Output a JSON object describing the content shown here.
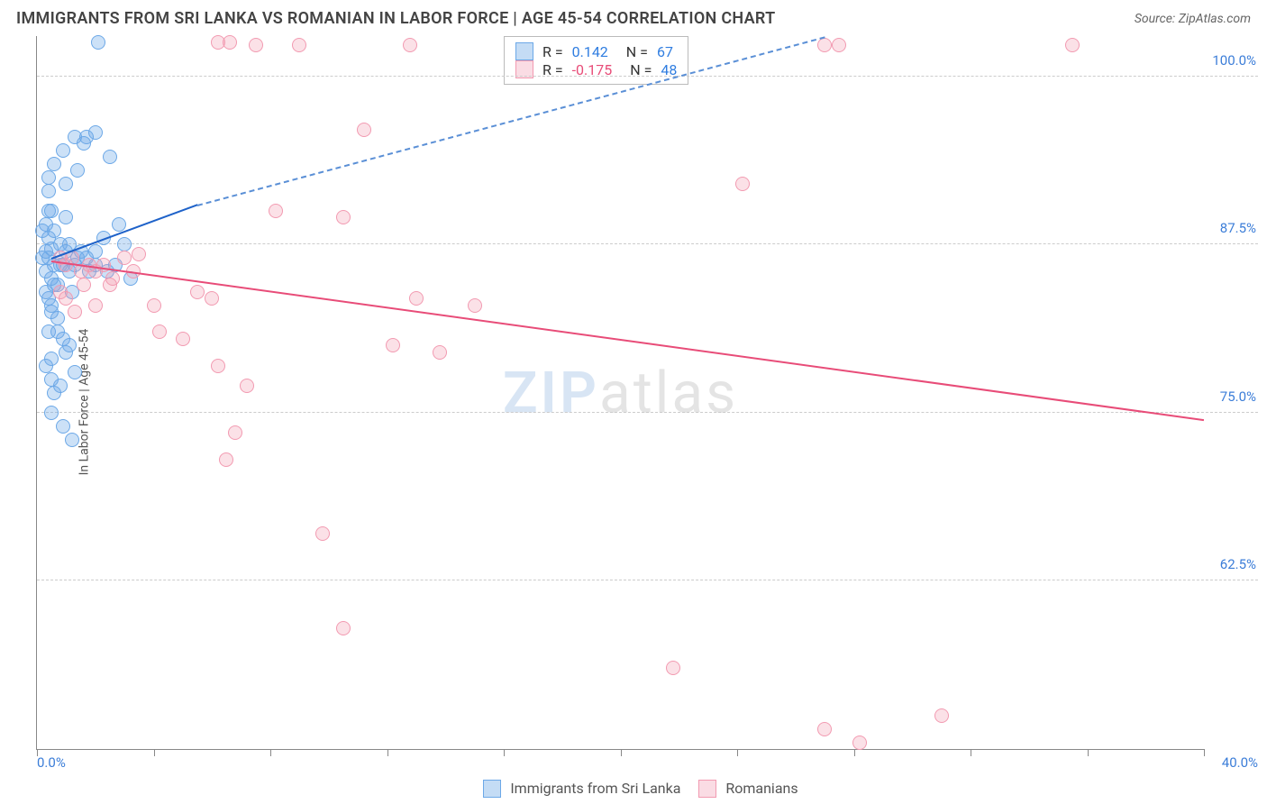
{
  "header": {
    "title": "IMMIGRANTS FROM SRI LANKA VS ROMANIAN IN LABOR FORCE | AGE 45-54 CORRELATION CHART",
    "source_prefix": "Source: ",
    "source_name": "ZipAtlas.com"
  },
  "chart": {
    "type": "scatter",
    "yaxis_title": "In Labor Force | Age 45-54",
    "xlim": [
      0,
      40
    ],
    "ylim": [
      50,
      103
    ],
    "xlabel_min": "0.0%",
    "xlabel_max": "40.0%",
    "yticks": [
      {
        "v": 62.5,
        "label": "62.5%"
      },
      {
        "v": 75.0,
        "label": "75.0%"
      },
      {
        "v": 87.5,
        "label": "87.5%"
      },
      {
        "v": 100.0,
        "label": "100.0%"
      }
    ],
    "xtick_positions": [
      0,
      4,
      8,
      12,
      16,
      20,
      24,
      28,
      32,
      36,
      40
    ],
    "background_color": "#ffffff",
    "grid_color": "#cccccc",
    "series": {
      "a": {
        "label": "Immigrants from Sri Lanka",
        "marker_fill": "rgba(108,168,231,0.35)",
        "marker_stroke": "#6ca8e7",
        "line_color": "#1e62c9",
        "R": "0.142",
        "N": "67",
        "trend": {
          "x1": 0.5,
          "y1": 86.5,
          "x2": 5.5,
          "y2": 90.5,
          "dash_to_x": 27,
          "dash_to_y": 103
        },
        "points": [
          [
            0.3,
            87
          ],
          [
            0.4,
            86.5
          ],
          [
            0.5,
            87.2
          ],
          [
            0.6,
            86
          ],
          [
            0.8,
            87.5
          ],
          [
            0.3,
            85.5
          ],
          [
            0.5,
            85
          ],
          [
            0.7,
            84.5
          ],
          [
            0.4,
            88
          ],
          [
            0.6,
            88.5
          ],
          [
            0.8,
            86
          ],
          [
            1.0,
            87
          ],
          [
            0.5,
            83
          ],
          [
            0.7,
            82
          ],
          [
            0.4,
            81
          ],
          [
            0.9,
            80.5
          ],
          [
            0.5,
            79
          ],
          [
            0.3,
            78.5
          ],
          [
            1.1,
            87.5
          ],
          [
            1.3,
            86
          ],
          [
            1.5,
            87
          ],
          [
            1.2,
            84
          ],
          [
            1.8,
            85.5
          ],
          [
            2.0,
            87
          ],
          [
            2.1,
            102.5
          ],
          [
            1.6,
            95
          ],
          [
            1.7,
            95.5
          ],
          [
            2.5,
            94
          ],
          [
            1.4,
            93
          ],
          [
            0.6,
            93.5
          ],
          [
            1.0,
            92
          ],
          [
            0.4,
            91.5
          ],
          [
            0.5,
            90
          ],
          [
            1.0,
            89.5
          ],
          [
            2.3,
            88
          ],
          [
            3.0,
            87.5
          ],
          [
            3.2,
            85
          ],
          [
            2.8,
            89
          ],
          [
            0.6,
            76.5
          ],
          [
            0.9,
            74
          ],
          [
            1.2,
            73
          ],
          [
            0.5,
            77.5
          ],
          [
            0.3,
            84
          ],
          [
            0.4,
            83.5
          ],
          [
            0.2,
            88.5
          ],
          [
            0.2,
            86.5
          ],
          [
            0.3,
            89
          ],
          [
            0.4,
            90
          ],
          [
            0.9,
            86
          ],
          [
            1.1,
            85.5
          ],
          [
            1.4,
            86.5
          ],
          [
            1.7,
            86.5
          ],
          [
            2.0,
            86
          ],
          [
            2.4,
            85.5
          ],
          [
            2.7,
            86
          ],
          [
            0.5,
            82.5
          ],
          [
            0.7,
            81
          ],
          [
            1.0,
            79.5
          ],
          [
            1.3,
            78
          ],
          [
            0.5,
            75
          ],
          [
            0.8,
            77
          ],
          [
            1.1,
            80
          ],
          [
            0.6,
            84.5
          ],
          [
            0.4,
            92.5
          ],
          [
            0.9,
            94.5
          ],
          [
            1.3,
            95.5
          ],
          [
            2.0,
            95.8
          ]
        ]
      },
      "b": {
        "label": "Romanians",
        "marker_fill": "rgba(242,154,177,0.30)",
        "marker_stroke": "#f29ab1",
        "line_color": "#e84c78",
        "R": "-0.175",
        "N": "48",
        "trend": {
          "x1": 0.5,
          "y1": 86.3,
          "x2": 40,
          "y2": 74.5
        },
        "points": [
          [
            0.8,
            86.5
          ],
          [
            1.0,
            86
          ],
          [
            1.2,
            86.5
          ],
          [
            1.5,
            85.5
          ],
          [
            1.8,
            86
          ],
          [
            2.0,
            85.5
          ],
          [
            2.3,
            86
          ],
          [
            2.6,
            85
          ],
          [
            3.0,
            86.5
          ],
          [
            3.3,
            85.5
          ],
          [
            6.2,
            102.5
          ],
          [
            6.6,
            102.5
          ],
          [
            7.5,
            102.3
          ],
          [
            9.0,
            102.3
          ],
          [
            12.8,
            102.3
          ],
          [
            11.2,
            96
          ],
          [
            24.2,
            92
          ],
          [
            8.2,
            90
          ],
          [
            10.5,
            89.5
          ],
          [
            13.0,
            83.5
          ],
          [
            15.0,
            83
          ],
          [
            12.2,
            80
          ],
          [
            13.8,
            79.5
          ],
          [
            5.5,
            84
          ],
          [
            6.0,
            83.5
          ],
          [
            4.0,
            83
          ],
          [
            4.2,
            81
          ],
          [
            5.0,
            80.5
          ],
          [
            6.2,
            78.5
          ],
          [
            7.2,
            77
          ],
          [
            6.8,
            73.5
          ],
          [
            6.5,
            71.5
          ],
          [
            9.8,
            66
          ],
          [
            10.5,
            59
          ],
          [
            21.8,
            56
          ],
          [
            28.2,
            50.5
          ],
          [
            27.0,
            51.5
          ],
          [
            31.0,
            52.5
          ],
          [
            27.0,
            102.3
          ],
          [
            27.5,
            102.3
          ],
          [
            35.5,
            102.3
          ],
          [
            1.0,
            83.5
          ],
          [
            1.3,
            82.5
          ],
          [
            1.6,
            84.5
          ],
          [
            2.0,
            83
          ],
          [
            2.5,
            84.5
          ],
          [
            0.8,
            84
          ],
          [
            3.5,
            86.8
          ]
        ]
      }
    },
    "stats_box": {
      "R_label": "R =",
      "N_label": "N ="
    },
    "bottom_legend": {
      "a": "Immigrants from Sri Lanka",
      "b": "Romanians"
    },
    "watermark": {
      "zip": "ZIP",
      "atlas": "atlas"
    }
  }
}
